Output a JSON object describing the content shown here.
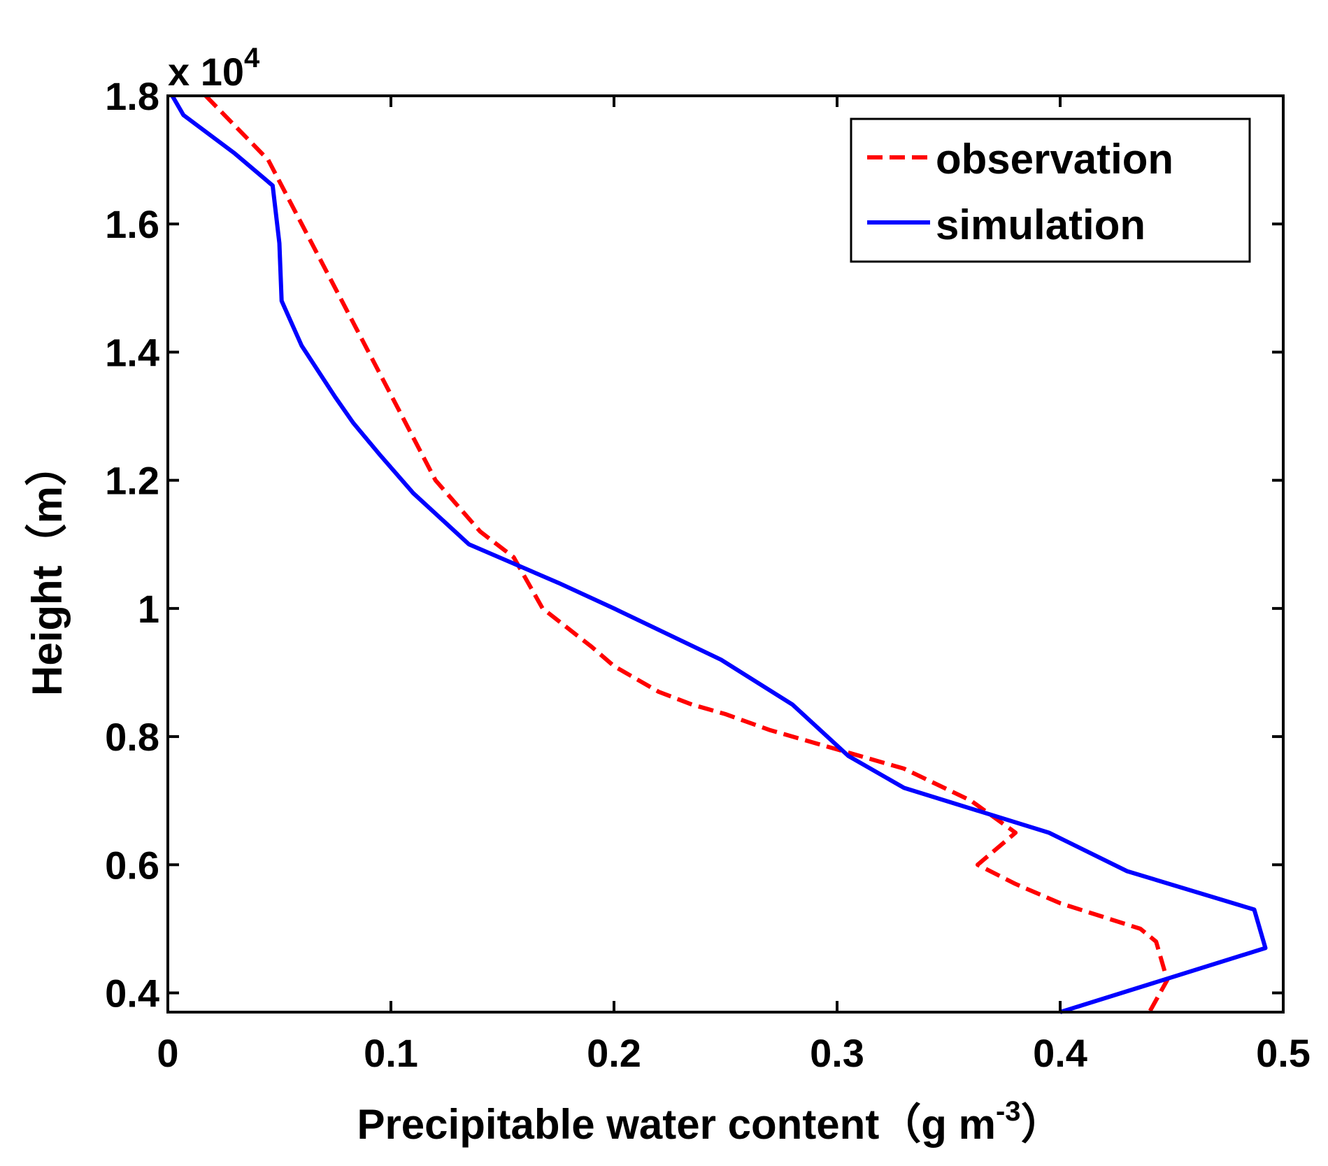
{
  "chart_data": {
    "type": "line",
    "xlabel": "Precipitable water content（g m",
    "xlabel_sup": "-3",
    "xlabel_close": "）",
    "ylabel": "Height（m）",
    "y_multiplier_text": "x 10",
    "y_multiplier_exp": "4",
    "xlim": [
      0,
      0.5
    ],
    "ylim": [
      3700,
      18000
    ],
    "x_ticks": [
      0,
      0.1,
      0.2,
      0.3,
      0.4,
      0.5
    ],
    "x_tick_labels": [
      "0",
      "0.1",
      "0.2",
      "0.3",
      "0.4",
      "0.5"
    ],
    "y_ticks": [
      4000,
      6000,
      8000,
      10000,
      12000,
      14000,
      16000,
      18000
    ],
    "y_tick_labels": [
      "0.4",
      "0.6",
      "0.8",
      "1",
      "1.2",
      "1.4",
      "1.6",
      "1.8"
    ],
    "legend_position": "top-right",
    "series": [
      {
        "name": "observation",
        "color": "#ff0000",
        "style": "dashed",
        "points": [
          [
            0.017,
            18000
          ],
          [
            0.045,
            17000
          ],
          [
            0.06,
            16000
          ],
          [
            0.075,
            15000
          ],
          [
            0.09,
            14000
          ],
          [
            0.105,
            13000
          ],
          [
            0.12,
            12000
          ],
          [
            0.14,
            11200
          ],
          [
            0.155,
            10800
          ],
          [
            0.168,
            10000
          ],
          [
            0.19,
            9400
          ],
          [
            0.2,
            9100
          ],
          [
            0.22,
            8700
          ],
          [
            0.235,
            8500
          ],
          [
            0.25,
            8350
          ],
          [
            0.27,
            8100
          ],
          [
            0.3,
            7800
          ],
          [
            0.33,
            7500
          ],
          [
            0.36,
            7000
          ],
          [
            0.38,
            6500
          ],
          [
            0.363,
            6000
          ],
          [
            0.38,
            5700
          ],
          [
            0.4,
            5400
          ],
          [
            0.436,
            5000
          ],
          [
            0.443,
            4800
          ],
          [
            0.448,
            4200
          ],
          [
            0.44,
            3700
          ]
        ]
      },
      {
        "name": "simulation",
        "color": "#0000ff",
        "style": "solid",
        "points": [
          [
            0.002,
            18000
          ],
          [
            0.007,
            17700
          ],
          [
            0.03,
            17100
          ],
          [
            0.047,
            16600
          ],
          [
            0.05,
            15700
          ],
          [
            0.051,
            14800
          ],
          [
            0.06,
            14100
          ],
          [
            0.075,
            13300
          ],
          [
            0.083,
            12900
          ],
          [
            0.095,
            12400
          ],
          [
            0.11,
            11800
          ],
          [
            0.135,
            11000
          ],
          [
            0.175,
            10400
          ],
          [
            0.2,
            10000
          ],
          [
            0.248,
            9200
          ],
          [
            0.28,
            8500
          ],
          [
            0.305,
            7700
          ],
          [
            0.33,
            7200
          ],
          [
            0.395,
            6500
          ],
          [
            0.43,
            5900
          ],
          [
            0.487,
            5300
          ],
          [
            0.492,
            4700
          ],
          [
            0.4,
            3700
          ]
        ]
      }
    ]
  }
}
